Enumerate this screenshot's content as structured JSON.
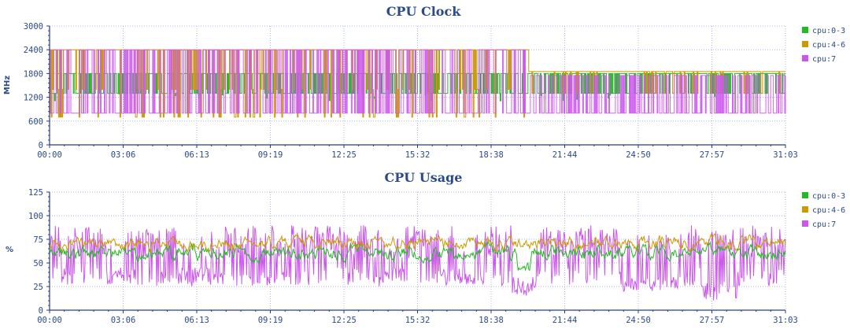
{
  "chart_data": [
    {
      "type": "line",
      "title": "CPU Clock",
      "xlabel": "",
      "ylabel": "MHz",
      "ylim": [
        0,
        3000
      ],
      "yticks": [
        "0",
        "600",
        "1200",
        "1800",
        "2400",
        "3000"
      ],
      "xticks": [
        "00:00",
        "03:06",
        "06:13",
        "09:19",
        "12:25",
        "15:32",
        "18:38",
        "21:44",
        "24:50",
        "27:57",
        "31:03"
      ],
      "grid": true,
      "legend_position": "right",
      "series": [
        {
          "name": "cpu:0-3",
          "color": "#22bb22",
          "segments": [
            {
              "from": 0,
              "to": 20.2,
              "levels": [
                1300,
                1800
              ],
              "high_frac": 0.55
            },
            {
              "from": 20.2,
              "to": 31.05,
              "levels": [
                1300,
                1800
              ],
              "high_frac": 0.6
            }
          ]
        },
        {
          "name": "cpu:4-6",
          "color": "#cc9900",
          "segments": [
            {
              "from": 0,
              "to": 20.2,
              "levels": [
                700,
                1400,
                2400
              ],
              "high_frac": 0.8
            },
            {
              "from": 20.2,
              "to": 31.05,
              "levels": [
                700,
                1300,
                1850
              ],
              "high_frac": 0.9
            }
          ]
        },
        {
          "name": "cpu:7",
          "color": "#cc55ee",
          "segments": [
            {
              "from": 0,
              "to": 20.2,
              "levels": [
                800,
                2400
              ],
              "high_frac": 0.5
            },
            {
              "from": 20.2,
              "to": 31.05,
              "levels": [
                800,
                1750
              ],
              "high_frac": 0.5
            }
          ]
        }
      ]
    },
    {
      "type": "line",
      "title": "CPU Usage",
      "xlabel": "",
      "ylabel": "%",
      "ylim": [
        0,
        125
      ],
      "yticks": [
        "0",
        "25",
        "50",
        "75",
        "100",
        "125"
      ],
      "xticks": [
        "00:00",
        "03:06",
        "06:13",
        "09:19",
        "12:25",
        "15:32",
        "18:38",
        "21:44",
        "24:50",
        "27:57",
        "31:03"
      ],
      "grid": true,
      "legend_position": "right",
      "series": [
        {
          "name": "cpu:0-3",
          "color": "#22bb22",
          "mean": 61,
          "spread": 10
        },
        {
          "name": "cpu:4-6",
          "color": "#cc9900",
          "mean": 71,
          "spread": 9
        },
        {
          "name": "cpu:7",
          "color": "#cc55ee",
          "mean": 62,
          "spread": 30
        }
      ]
    }
  ]
}
